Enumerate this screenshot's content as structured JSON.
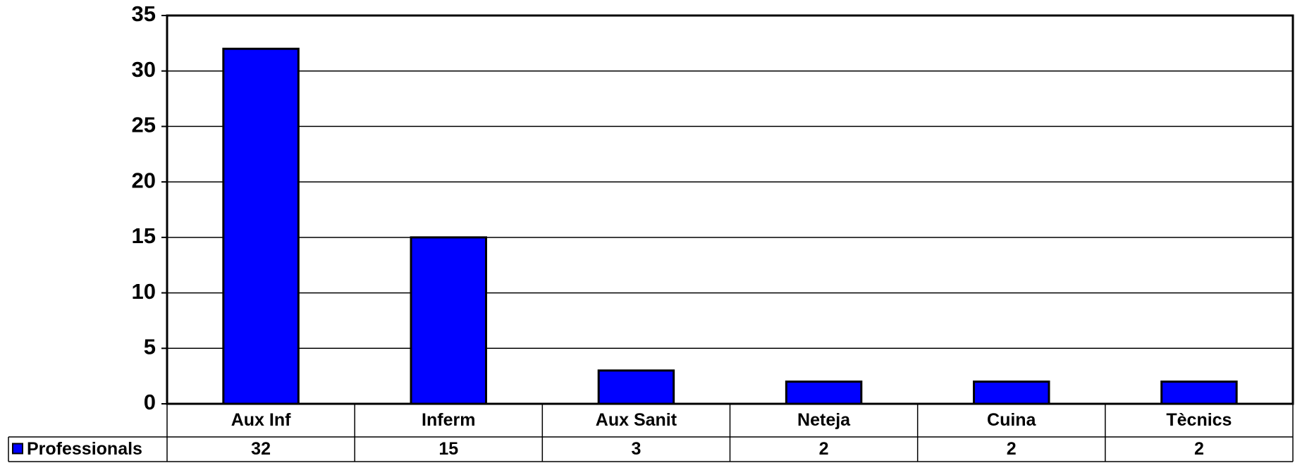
{
  "chart_data": {
    "type": "bar",
    "categories": [
      "Aux Inf",
      "Inferm",
      "Aux Sanit",
      "Neteja",
      "Cuina",
      "Tècnics"
    ],
    "series": [
      {
        "name": "Professionals",
        "color": "#0000ff",
        "values": [
          32,
          15,
          3,
          2,
          2,
          2
        ]
      }
    ],
    "ylim": [
      0,
      35
    ],
    "yticks": [
      0,
      5,
      10,
      15,
      20,
      25,
      30,
      35
    ],
    "grid": true,
    "data_table": true
  }
}
